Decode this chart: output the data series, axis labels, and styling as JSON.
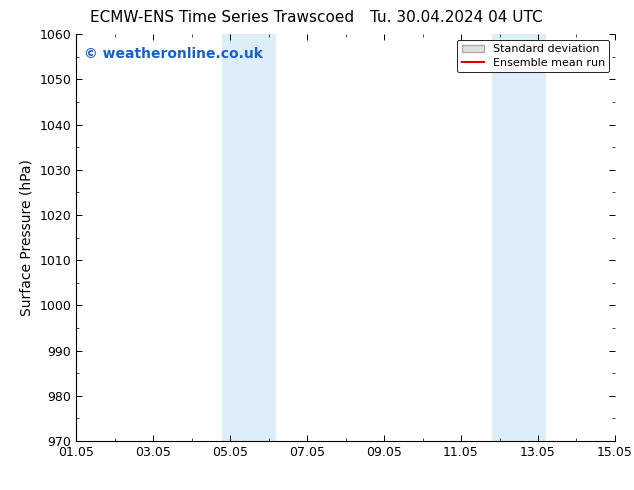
{
  "title_left": "ECMW-ENS Time Series Trawscoed",
  "title_right": "Tu. 30.04.2024 04 UTC",
  "ylabel": "Surface Pressure (hPa)",
  "ylim": [
    970,
    1060
  ],
  "yticks": [
    970,
    980,
    990,
    1000,
    1010,
    1020,
    1030,
    1040,
    1050,
    1060
  ],
  "xlim_num": [
    0,
    14
  ],
  "xtick_positions": [
    0,
    2,
    4,
    6,
    8,
    10,
    12,
    14
  ],
  "xtick_labels": [
    "01.05",
    "03.05",
    "05.05",
    "07.05",
    "09.05",
    "11.05",
    "13.05",
    "15.05"
  ],
  "shaded_bands": [
    {
      "x_start": 3.8,
      "x_end": 5.2
    },
    {
      "x_start": 10.8,
      "x_end": 12.2
    }
  ],
  "band_color": "#ddeef8",
  "watermark_text": "© weatheronline.co.uk",
  "watermark_color": "#1a5fcc",
  "legend_std_label": "Standard deviation",
  "legend_mean_label": "Ensemble mean run",
  "legend_std_facecolor": "#e0e0e0",
  "legend_std_edgecolor": "#aaaaaa",
  "legend_mean_color": "#dd0000",
  "background_color": "#ffffff",
  "title_fontsize": 11,
  "axis_label_fontsize": 10,
  "tick_fontsize": 9,
  "watermark_fontsize": 10,
  "legend_fontsize": 8
}
